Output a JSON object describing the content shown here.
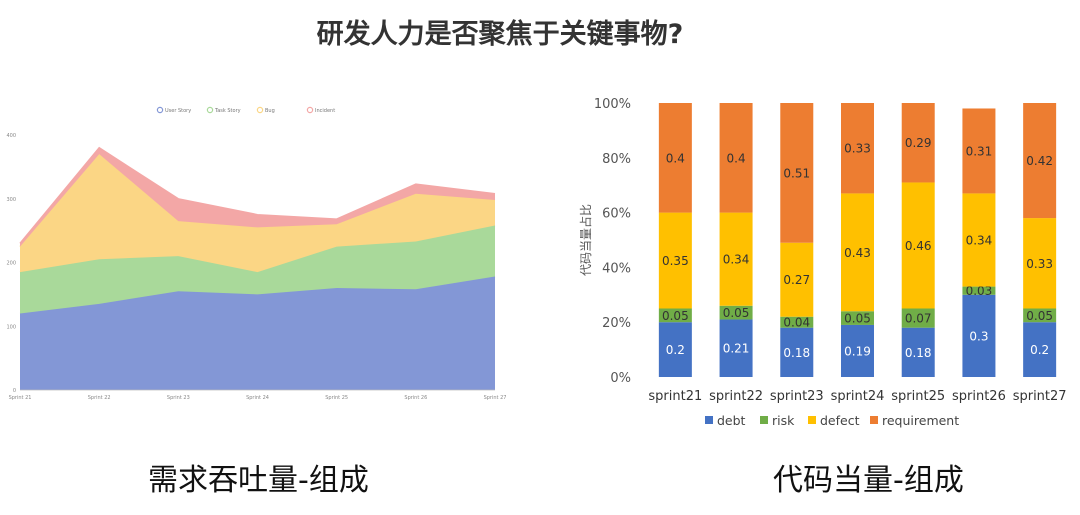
{
  "page": {
    "title": "研发人力是否聚焦于关键事物?",
    "caption_left": "需求吞吐量-组成",
    "caption_right": "代码当量-组成"
  },
  "chart_data": [
    {
      "type": "area",
      "stacked": true,
      "categories": [
        "Sprint 21",
        "Sprint 22",
        "Sprint 23",
        "Sprint 24",
        "Sprint 25",
        "Sprint 26",
        "Sprint 27"
      ],
      "ylim": [
        0,
        400
      ],
      "yticks": [
        "0",
        "100",
        "200",
        "300",
        "400"
      ],
      "grid": false,
      "legend_position": "top",
      "series": [
        {
          "name": "User Story",
          "color": "#8397d6",
          "values": [
            120,
            135,
            155,
            150,
            160,
            158,
            178
          ]
        },
        {
          "name": "Task Story",
          "color": "#a9d99a",
          "values": [
            65,
            70,
            55,
            35,
            65,
            75,
            80
          ]
        },
        {
          "name": "Bug",
          "color": "#fbd685",
          "values": [
            40,
            165,
            55,
            70,
            35,
            75,
            40
          ]
        },
        {
          "name": "Incident",
          "color": "#f3a7a6",
          "values": [
            5,
            10,
            35,
            20,
            8,
            15,
            10
          ]
        }
      ]
    },
    {
      "type": "bar",
      "stacked": true,
      "percent": true,
      "categories": [
        "sprint21",
        "sprint22",
        "sprint23",
        "sprint24",
        "sprint25",
        "sprint26",
        "sprint27"
      ],
      "ylabel": "代码当量占比",
      "ylim": [
        0,
        1
      ],
      "yticks": [
        "0%",
        "20%",
        "40%",
        "60%",
        "80%",
        "100%"
      ],
      "grid": false,
      "legend_position": "bottom",
      "series": [
        {
          "name": "debt",
          "color": "#4472c4",
          "label_color": "#ffffff",
          "values": [
            0.2,
            0.21,
            0.18,
            0.19,
            0.18,
            0.3,
            0.2
          ]
        },
        {
          "name": "risk",
          "color": "#70ad47",
          "label_color": "#333333",
          "values": [
            0.05,
            0.05,
            0.04,
            0.05,
            0.07,
            0.03,
            0.05
          ]
        },
        {
          "name": "defect",
          "color": "#ffc000",
          "label_color": "#333333",
          "values": [
            0.35,
            0.34,
            0.27,
            0.43,
            0.46,
            0.34,
            0.33
          ]
        },
        {
          "name": "requirement",
          "color": "#ed7d31",
          "label_color": "#333333",
          "values": [
            0.4,
            0.4,
            0.51,
            0.33,
            0.29,
            0.31,
            0.42
          ]
        }
      ]
    }
  ]
}
